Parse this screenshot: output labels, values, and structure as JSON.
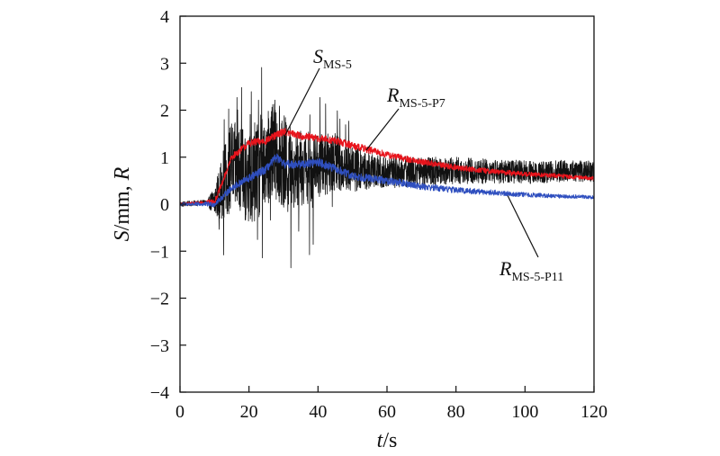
{
  "chart_data": {
    "type": "line",
    "xlabel": {
      "var": "t",
      "unit": "/s"
    },
    "ylabel": {
      "var1": "S",
      "unit": "/mm, ",
      "var2": "R"
    },
    "xlim": [
      0,
      120
    ],
    "ylim": [
      -4,
      4
    ],
    "xticks": [
      0,
      20,
      40,
      60,
      80,
      100,
      120
    ],
    "xtick_labels": [
      "0",
      "20",
      "40",
      "60",
      "80",
      "100",
      "120"
    ],
    "yticks": [
      -4,
      -3,
      -2,
      -1,
      0,
      1,
      2,
      3,
      4
    ],
    "ytick_labels": [
      "−4",
      "−3",
      "−2",
      "−1",
      "0",
      "1",
      "2",
      "3",
      "4"
    ],
    "grid": false,
    "series": [
      {
        "name": "S_MS-5",
        "label_main": "S",
        "label_sub": "MS-5",
        "color": "#111111",
        "noise": 1.1,
        "envelope": [
          [
            0,
            0.05
          ],
          [
            8,
            0.05
          ],
          [
            12,
            0.6
          ],
          [
            15,
            0.9
          ],
          [
            22,
            0.9
          ],
          [
            28,
            1.0
          ],
          [
            35,
            0.7
          ],
          [
            45,
            0.55
          ],
          [
            55,
            0.35
          ],
          [
            70,
            0.28
          ],
          [
            90,
            0.24
          ],
          [
            120,
            0.2
          ]
        ],
        "x": [
          0,
          10,
          12,
          15,
          20,
          25,
          28,
          30,
          35,
          40,
          45,
          50,
          55,
          60,
          70,
          80,
          90,
          100,
          110,
          120
        ],
        "y": [
          0.0,
          0.05,
          0.35,
          0.8,
          0.5,
          0.9,
          1.2,
          0.9,
          0.7,
          0.8,
          0.9,
          0.75,
          0.7,
          0.68,
          0.7,
          0.72,
          0.7,
          0.68,
          0.7,
          0.7
        ]
      },
      {
        "name": "R_MS-5-P7",
        "label_main": "R",
        "label_sub": "MS-5-P7",
        "color": "#e8141c",
        "noise": 0.08,
        "envelope": [
          [
            0,
            0.3
          ],
          [
            12,
            0.8
          ],
          [
            20,
            1.0
          ],
          [
            50,
            1.0
          ],
          [
            120,
            0.5
          ]
        ],
        "x": [
          0,
          10,
          12,
          15,
          20,
          25,
          30,
          35,
          40,
          45,
          50,
          55,
          60,
          70,
          80,
          90,
          100,
          110,
          120
        ],
        "y": [
          0.0,
          0.05,
          0.4,
          1.0,
          1.3,
          1.35,
          1.55,
          1.45,
          1.4,
          1.35,
          1.25,
          1.15,
          1.05,
          0.9,
          0.78,
          0.7,
          0.64,
          0.6,
          0.55
        ]
      },
      {
        "name": "R_MS-5-P11",
        "label_main": "R",
        "label_sub": "MS-5-P11",
        "color": "#2f4fbf",
        "noise": 0.09,
        "envelope": [
          [
            0,
            0.3
          ],
          [
            12,
            0.7
          ],
          [
            20,
            1.0
          ],
          [
            45,
            1.0
          ],
          [
            120,
            0.4
          ]
        ],
        "x": [
          0,
          10,
          13,
          15,
          20,
          25,
          28,
          30,
          35,
          40,
          45,
          50,
          60,
          70,
          80,
          90,
          100,
          110,
          120
        ],
        "y": [
          0.0,
          0.0,
          0.2,
          0.35,
          0.55,
          0.75,
          1.0,
          0.85,
          0.85,
          0.9,
          0.75,
          0.6,
          0.5,
          0.38,
          0.3,
          0.25,
          0.2,
          0.17,
          0.15
        ]
      }
    ],
    "annotations": [
      {
        "series": 0,
        "text_main": "S",
        "text_sub": "MS-5",
        "point": [
          30,
          1.4
        ]
      },
      {
        "series": 1,
        "text_main": "R",
        "text_sub": "MS-5-P7",
        "point": [
          54,
          1.15
        ]
      },
      {
        "series": 2,
        "text_main": "R",
        "text_sub": "MS-5-P11",
        "point": [
          95,
          0.18
        ]
      }
    ]
  }
}
